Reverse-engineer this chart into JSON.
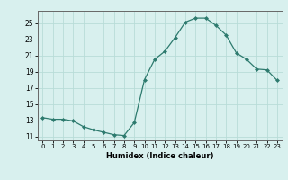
{
  "x": [
    0,
    1,
    2,
    3,
    4,
    5,
    6,
    7,
    8,
    9,
    10,
    11,
    12,
    13,
    14,
    15,
    16,
    17,
    18,
    19,
    20,
    21,
    22,
    23
  ],
  "y": [
    13.3,
    13.1,
    13.1,
    12.9,
    12.2,
    11.8,
    11.5,
    11.2,
    11.1,
    12.7,
    18.0,
    20.5,
    21.5,
    23.2,
    25.1,
    25.6,
    25.6,
    24.7,
    23.5,
    21.3,
    20.5,
    19.3,
    19.2,
    17.9
  ],
  "xlabel": "Humidex (Indice chaleur)",
  "xlim": [
    -0.5,
    23.5
  ],
  "ylim": [
    10.5,
    26.5
  ],
  "yticks": [
    11,
    13,
    15,
    17,
    19,
    21,
    23,
    25
  ],
  "xticks": [
    0,
    1,
    2,
    3,
    4,
    5,
    6,
    7,
    8,
    9,
    10,
    11,
    12,
    13,
    14,
    15,
    16,
    17,
    18,
    19,
    20,
    21,
    22,
    23
  ],
  "line_color": "#2d7a6e",
  "marker": "D",
  "marker_size": 2.0,
  "bg_color": "#d8f0ee",
  "grid_color": "#b8dcd8"
}
